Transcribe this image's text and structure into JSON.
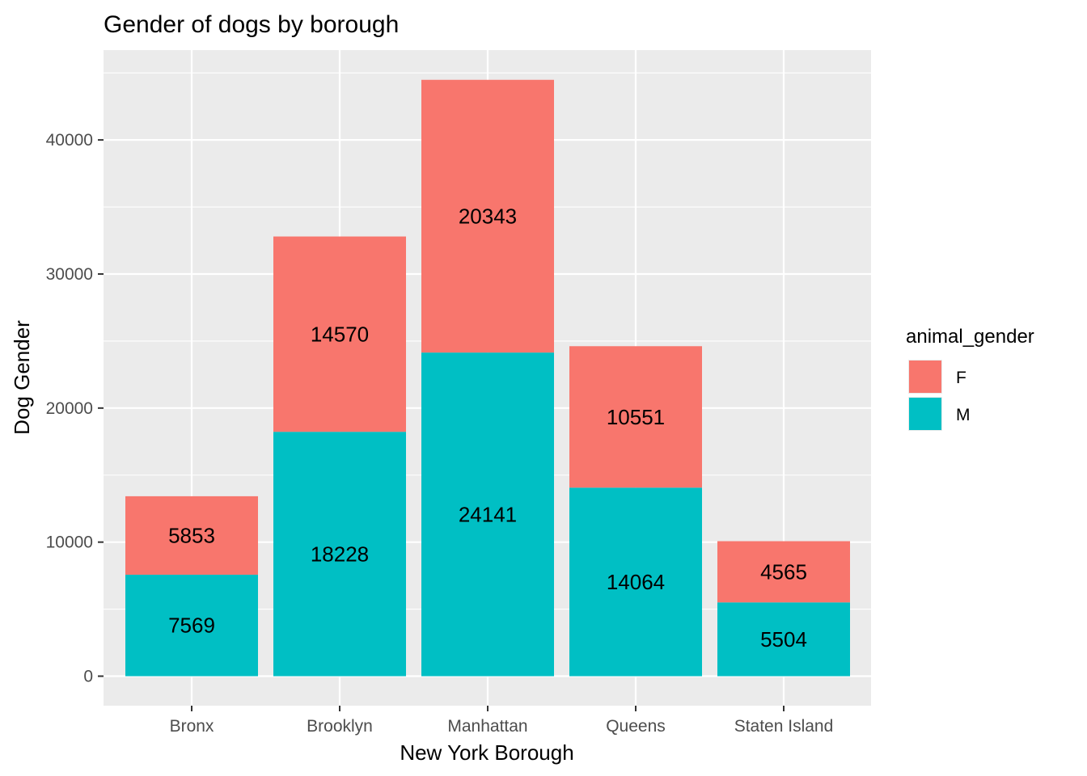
{
  "chart_data": {
    "type": "bar",
    "stacked": true,
    "title": "Gender of dogs by borough",
    "xlabel": "New York Borough",
    "ylabel": "Dog Gender",
    "categories": [
      "Bronx",
      "Brooklyn",
      "Manhattan",
      "Queens",
      "Staten Island"
    ],
    "series": [
      {
        "name": "M",
        "values": [
          7569,
          18228,
          24141,
          14064,
          5504
        ]
      },
      {
        "name": "F",
        "values": [
          5853,
          14570,
          20343,
          10551,
          4565
        ]
      }
    ],
    "yticks": [
      0,
      10000,
      20000,
      30000,
      40000
    ],
    "ylim": [
      -2200,
      46700
    ],
    "grid": true,
    "legend": {
      "title": "animal_gender",
      "placement": "right",
      "entries": [
        "F",
        "M"
      ]
    }
  },
  "colors": {
    "F": "#F8766D",
    "M": "#00BFC4",
    "panel": "#EBEBEB",
    "grid": "#FFFFFF",
    "tick_text": "#4D4D4D",
    "tick_mark": "#333333"
  }
}
